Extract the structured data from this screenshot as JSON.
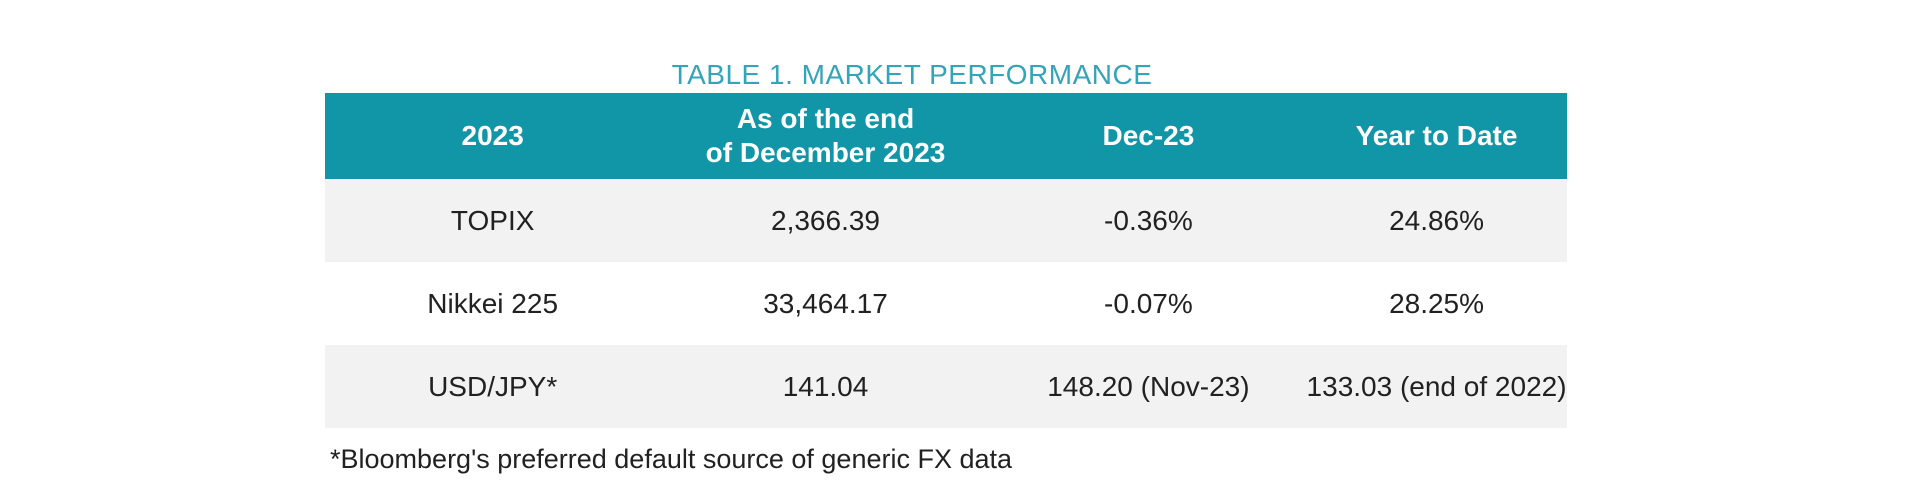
{
  "title": "TABLE 1. MARKET PERFORMANCE",
  "table": {
    "header": [
      {
        "label": "2023"
      },
      {
        "line1": "As of the end",
        "line2": "of December 2023"
      },
      {
        "label": "Dec-23"
      },
      {
        "label": "Year to Date"
      }
    ],
    "rows": [
      {
        "cells": [
          "TOPIX",
          "2,366.39",
          "-0.36%",
          "24.86%"
        ]
      },
      {
        "cells": [
          "Nikkei 225",
          "33,464.17",
          "-0.07%",
          "28.25%"
        ]
      },
      {
        "cells": [
          "USD/JPY*",
          "141.04",
          "148.20 (Nov-23)",
          "133.03 (end of 2022)"
        ]
      }
    ]
  },
  "footnote": "*Bloomberg's preferred default source of generic FX data",
  "colors": {
    "header_background": "#1196a8",
    "title_text": "#35a3b8",
    "header_text": "#ffffff",
    "shaded_row_background": "#f2f2f2",
    "body_text": "#212121"
  },
  "chart_data": {
    "type": "table",
    "title": "TABLE 1. MARKET PERFORMANCE",
    "columns": [
      "2023",
      "As of the end of December 2023",
      "Dec-23",
      "Year to Date"
    ],
    "rows": [
      [
        "TOPIX",
        "2,366.39",
        "-0.36%",
        "24.86%"
      ],
      [
        "Nikkei 225",
        "33,464.17",
        "-0.07%",
        "28.25%"
      ],
      [
        "USD/JPY*",
        "141.04",
        "148.20 (Nov-23)",
        "133.03 (end of 2022)"
      ]
    ],
    "footnote": "*Bloomberg's preferred default source of generic FX data"
  }
}
